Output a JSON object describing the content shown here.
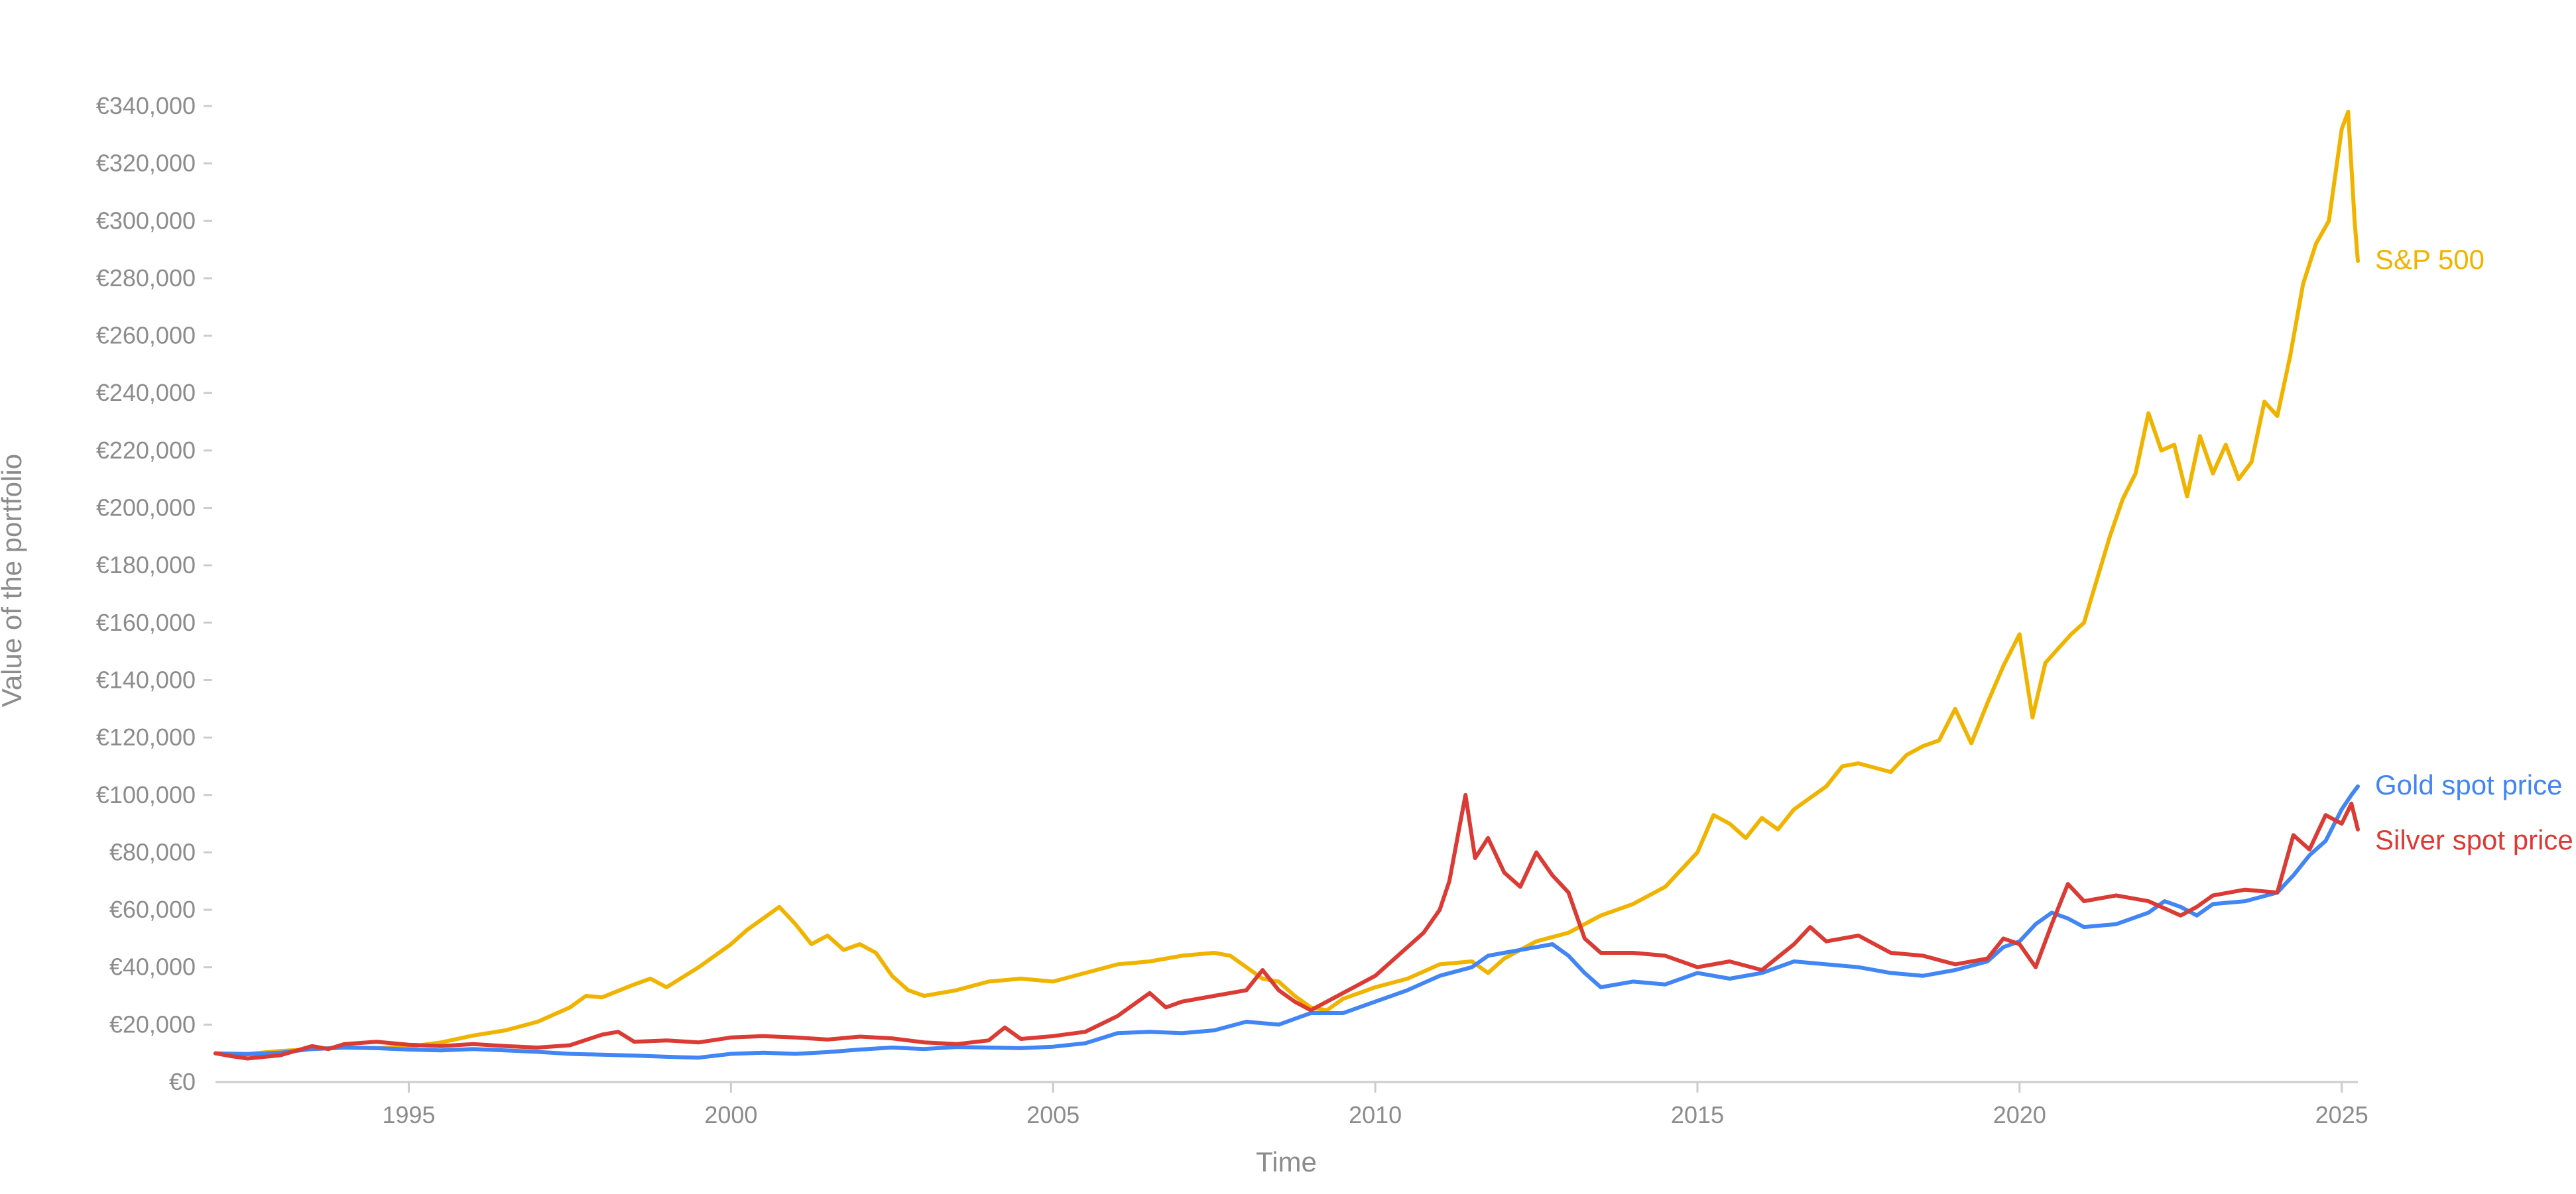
{
  "chart_data": {
    "type": "line",
    "title": "",
    "xlabel": "Time",
    "ylabel": "Value of the portfolio",
    "xlim": [
      1992.0,
      2025.25
    ],
    "ylim": [
      0,
      340000
    ],
    "y_ticks": [
      0,
      20000,
      40000,
      60000,
      80000,
      100000,
      120000,
      140000,
      160000,
      180000,
      200000,
      220000,
      240000,
      260000,
      280000,
      300000,
      320000,
      340000
    ],
    "y_tick_labels": [
      "€0",
      "€20,000",
      "€40,000",
      "€60,000",
      "€80,000",
      "€100,000",
      "€120,000",
      "€140,000",
      "€160,000",
      "€180,000",
      "€200,000",
      "€220,000",
      "€240,000",
      "€260,000",
      "€280,000",
      "€300,000",
      "€320,000",
      "€340,000"
    ],
    "x_ticks": [
      1995,
      2000,
      2005,
      2010,
      2015,
      2020,
      2025
    ],
    "x_tick_labels": [
      "1995",
      "2000",
      "2005",
      "2010",
      "2015",
      "2020",
      "2025"
    ],
    "grid": false,
    "legend": "end-of-line labels",
    "series": [
      {
        "name": "S&P 500",
        "color": "#f0b400",
        "points": [
          [
            1992.0,
            10000
          ],
          [
            1992.5,
            9800
          ],
          [
            1993.0,
            10800
          ],
          [
            1993.5,
            11500
          ],
          [
            1994.0,
            12000
          ],
          [
            1994.5,
            11800
          ],
          [
            1995.0,
            12300
          ],
          [
            1995.5,
            13800
          ],
          [
            1996.0,
            16200
          ],
          [
            1996.5,
            18000
          ],
          [
            1997.0,
            21000
          ],
          [
            1997.5,
            26000
          ],
          [
            1997.75,
            30000
          ],
          [
            1998.0,
            29500
          ],
          [
            1998.5,
            34000
          ],
          [
            1998.75,
            36000
          ],
          [
            1999.0,
            33000
          ],
          [
            1999.5,
            40000
          ],
          [
            1999.75,
            44000
          ],
          [
            2000.0,
            48000
          ],
          [
            2000.25,
            53000
          ],
          [
            2000.5,
            57000
          ],
          [
            2000.75,
            61000
          ],
          [
            2001.0,
            55000
          ],
          [
            2001.25,
            48000
          ],
          [
            2001.5,
            51000
          ],
          [
            2001.75,
            46000
          ],
          [
            2002.0,
            48000
          ],
          [
            2002.25,
            45000
          ],
          [
            2002.5,
            37000
          ],
          [
            2002.75,
            32000
          ],
          [
            2003.0,
            30000
          ],
          [
            2003.5,
            32000
          ],
          [
            2004.0,
            35000
          ],
          [
            2004.5,
            36000
          ],
          [
            2005.0,
            35000
          ],
          [
            2005.5,
            38000
          ],
          [
            2006.0,
            41000
          ],
          [
            2006.5,
            42000
          ],
          [
            2007.0,
            44000
          ],
          [
            2007.5,
            45000
          ],
          [
            2007.75,
            44000
          ],
          [
            2008.0,
            40000
          ],
          [
            2008.25,
            36000
          ],
          [
            2008.5,
            35000
          ],
          [
            2008.75,
            30000
          ],
          [
            2009.0,
            26000
          ],
          [
            2009.25,
            25000
          ],
          [
            2009.5,
            29000
          ],
          [
            2010.0,
            33000
          ],
          [
            2010.5,
            36000
          ],
          [
            2011.0,
            41000
          ],
          [
            2011.5,
            42000
          ],
          [
            2011.75,
            38000
          ],
          [
            2012.0,
            43000
          ],
          [
            2012.5,
            49000
          ],
          [
            2013.0,
            52000
          ],
          [
            2013.5,
            58000
          ],
          [
            2014.0,
            62000
          ],
          [
            2014.5,
            68000
          ],
          [
            2015.0,
            80000
          ],
          [
            2015.25,
            93000
          ],
          [
            2015.5,
            90000
          ],
          [
            2015.75,
            85000
          ],
          [
            2016.0,
            92000
          ],
          [
            2016.25,
            88000
          ],
          [
            2016.5,
            95000
          ],
          [
            2017.0,
            103000
          ],
          [
            2017.25,
            110000
          ],
          [
            2017.5,
            111000
          ],
          [
            2018.0,
            108000
          ],
          [
            2018.25,
            114000
          ],
          [
            2018.5,
            117000
          ],
          [
            2018.75,
            119000
          ],
          [
            2019.0,
            130000
          ],
          [
            2019.25,
            118000
          ],
          [
            2019.5,
            132000
          ],
          [
            2019.75,
            145000
          ],
          [
            2020.0,
            156000
          ],
          [
            2020.2,
            127000
          ],
          [
            2020.4,
            146000
          ],
          [
            2020.6,
            151000
          ],
          [
            2020.8,
            156000
          ],
          [
            2021.0,
            160000
          ],
          [
            2021.2,
            175000
          ],
          [
            2021.4,
            190000
          ],
          [
            2021.6,
            203000
          ],
          [
            2021.8,
            212000
          ],
          [
            2022.0,
            233000
          ],
          [
            2022.2,
            220000
          ],
          [
            2022.4,
            222000
          ],
          [
            2022.6,
            204000
          ],
          [
            2022.8,
            225000
          ],
          [
            2023.0,
            212000
          ],
          [
            2023.2,
            222000
          ],
          [
            2023.4,
            210000
          ],
          [
            2023.6,
            216000
          ],
          [
            2023.8,
            237000
          ],
          [
            2024.0,
            232000
          ],
          [
            2024.2,
            253000
          ],
          [
            2024.4,
            278000
          ],
          [
            2024.6,
            292000
          ],
          [
            2024.8,
            300000
          ],
          [
            2025.0,
            332000
          ],
          [
            2025.1,
            338000
          ],
          [
            2025.2,
            300000
          ],
          [
            2025.25,
            286000
          ]
        ]
      },
      {
        "name": "Gold spot price",
        "color": "#4285f4",
        "points": [
          [
            1992.0,
            10000
          ],
          [
            1992.5,
            9700
          ],
          [
            1993.0,
            10200
          ],
          [
            1993.5,
            11500
          ],
          [
            1994.0,
            12000
          ],
          [
            1994.5,
            11800
          ],
          [
            1995.0,
            11300
          ],
          [
            1995.5,
            11000
          ],
          [
            1996.0,
            11500
          ],
          [
            1996.5,
            11000
          ],
          [
            1997.0,
            10500
          ],
          [
            1997.5,
            9800
          ],
          [
            1998.0,
            9500
          ],
          [
            1998.5,
            9200
          ],
          [
            1999.0,
            8800
          ],
          [
            1999.5,
            8500
          ],
          [
            2000.0,
            9800
          ],
          [
            2000.5,
            10200
          ],
          [
            2001.0,
            9800
          ],
          [
            2001.5,
            10400
          ],
          [
            2002.0,
            11300
          ],
          [
            2002.5,
            12000
          ],
          [
            2003.0,
            11500
          ],
          [
            2003.5,
            12200
          ],
          [
            2004.0,
            12000
          ],
          [
            2004.5,
            11800
          ],
          [
            2005.0,
            12300
          ],
          [
            2005.5,
            13500
          ],
          [
            2006.0,
            17000
          ],
          [
            2006.5,
            17500
          ],
          [
            2007.0,
            17000
          ],
          [
            2007.5,
            18000
          ],
          [
            2008.0,
            21000
          ],
          [
            2008.5,
            20000
          ],
          [
            2008.75,
            22000
          ],
          [
            2009.0,
            24000
          ],
          [
            2009.5,
            24000
          ],
          [
            2010.0,
            28000
          ],
          [
            2010.5,
            32000
          ],
          [
            2011.0,
            37000
          ],
          [
            2011.5,
            40000
          ],
          [
            2011.75,
            44000
          ],
          [
            2012.0,
            45000
          ],
          [
            2012.5,
            47000
          ],
          [
            2012.75,
            48000
          ],
          [
            2013.0,
            44000
          ],
          [
            2013.25,
            38000
          ],
          [
            2013.5,
            33000
          ],
          [
            2014.0,
            35000
          ],
          [
            2014.5,
            34000
          ],
          [
            2015.0,
            38000
          ],
          [
            2015.5,
            36000
          ],
          [
            2016.0,
            38000
          ],
          [
            2016.5,
            42000
          ],
          [
            2017.0,
            41000
          ],
          [
            2017.5,
            40000
          ],
          [
            2018.0,
            38000
          ],
          [
            2018.5,
            37000
          ],
          [
            2019.0,
            39000
          ],
          [
            2019.5,
            42000
          ],
          [
            2019.75,
            47000
          ],
          [
            2020.0,
            49000
          ],
          [
            2020.25,
            55000
          ],
          [
            2020.5,
            59000
          ],
          [
            2020.75,
            57000
          ],
          [
            2021.0,
            54000
          ],
          [
            2021.5,
            55000
          ],
          [
            2022.0,
            59000
          ],
          [
            2022.25,
            63000
          ],
          [
            2022.5,
            61000
          ],
          [
            2022.75,
            58000
          ],
          [
            2023.0,
            62000
          ],
          [
            2023.5,
            63000
          ],
          [
            2024.0,
            66000
          ],
          [
            2024.25,
            72000
          ],
          [
            2024.5,
            79000
          ],
          [
            2024.75,
            84000
          ],
          [
            2025.0,
            95000
          ],
          [
            2025.15,
            100000
          ],
          [
            2025.25,
            103000
          ]
        ]
      },
      {
        "name": "Silver spot price",
        "color": "#db3b35",
        "points": [
          [
            1992.0,
            10000
          ],
          [
            1992.25,
            9000
          ],
          [
            1992.5,
            8200
          ],
          [
            1993.0,
            9300
          ],
          [
            1993.5,
            12500
          ],
          [
            1993.75,
            11500
          ],
          [
            1994.0,
            13200
          ],
          [
            1994.5,
            14000
          ],
          [
            1995.0,
            13000
          ],
          [
            1995.5,
            12500
          ],
          [
            1996.0,
            13200
          ],
          [
            1996.5,
            12500
          ],
          [
            1997.0,
            12000
          ],
          [
            1997.5,
            12800
          ],
          [
            1998.0,
            16500
          ],
          [
            1998.25,
            17500
          ],
          [
            1998.5,
            14000
          ],
          [
            1999.0,
            14500
          ],
          [
            1999.5,
            13800
          ],
          [
            2000.0,
            15500
          ],
          [
            2000.5,
            16000
          ],
          [
            2001.0,
            15500
          ],
          [
            2001.5,
            14800
          ],
          [
            2002.0,
            15800
          ],
          [
            2002.5,
            15200
          ],
          [
            2003.0,
            13800
          ],
          [
            2003.5,
            13200
          ],
          [
            2004.0,
            14500
          ],
          [
            2004.25,
            19000
          ],
          [
            2004.5,
            15000
          ],
          [
            2005.0,
            16000
          ],
          [
            2005.5,
            17500
          ],
          [
            2006.0,
            23000
          ],
          [
            2006.5,
            31000
          ],
          [
            2006.75,
            26000
          ],
          [
            2007.0,
            28000
          ],
          [
            2007.5,
            30000
          ],
          [
            2008.0,
            32000
          ],
          [
            2008.25,
            39000
          ],
          [
            2008.5,
            32000
          ],
          [
            2008.75,
            28000
          ],
          [
            2009.0,
            25000
          ],
          [
            2009.5,
            31000
          ],
          [
            2010.0,
            37000
          ],
          [
            2010.5,
            47000
          ],
          [
            2010.75,
            52000
          ],
          [
            2011.0,
            60000
          ],
          [
            2011.15,
            70000
          ],
          [
            2011.3,
            88000
          ],
          [
            2011.4,
            100000
          ],
          [
            2011.55,
            78000
          ],
          [
            2011.75,
            85000
          ],
          [
            2012.0,
            73000
          ],
          [
            2012.25,
            68000
          ],
          [
            2012.5,
            80000
          ],
          [
            2012.75,
            72000
          ],
          [
            2013.0,
            66000
          ],
          [
            2013.25,
            50000
          ],
          [
            2013.5,
            45000
          ],
          [
            2014.0,
            45000
          ],
          [
            2014.5,
            44000
          ],
          [
            2015.0,
            40000
          ],
          [
            2015.5,
            42000
          ],
          [
            2016.0,
            39000
          ],
          [
            2016.5,
            48000
          ],
          [
            2016.75,
            54000
          ],
          [
            2017.0,
            49000
          ],
          [
            2017.5,
            51000
          ],
          [
            2018.0,
            45000
          ],
          [
            2018.5,
            44000
          ],
          [
            2019.0,
            41000
          ],
          [
            2019.5,
            43000
          ],
          [
            2019.75,
            50000
          ],
          [
            2020.0,
            48000
          ],
          [
            2020.25,
            40000
          ],
          [
            2020.5,
            55000
          ],
          [
            2020.75,
            69000
          ],
          [
            2021.0,
            63000
          ],
          [
            2021.5,
            65000
          ],
          [
            2022.0,
            63000
          ],
          [
            2022.5,
            58000
          ],
          [
            2022.75,
            61000
          ],
          [
            2023.0,
            65000
          ],
          [
            2023.5,
            67000
          ],
          [
            2024.0,
            66000
          ],
          [
            2024.25,
            86000
          ],
          [
            2024.5,
            81000
          ],
          [
            2024.75,
            93000
          ],
          [
            2025.0,
            90000
          ],
          [
            2025.15,
            97000
          ],
          [
            2025.25,
            88000
          ]
        ]
      }
    ]
  }
}
